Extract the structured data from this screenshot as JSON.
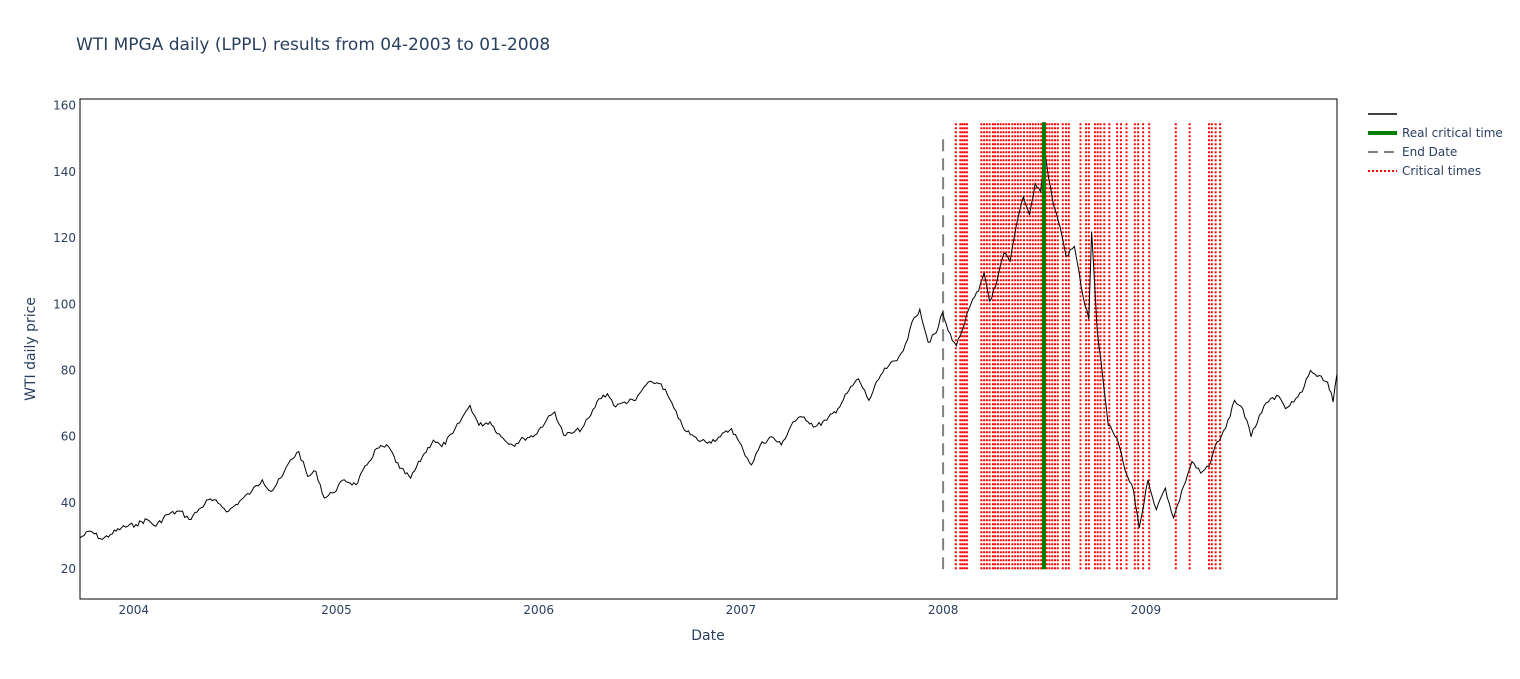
{
  "chart_data": {
    "type": "line",
    "title": "WTI MPGA daily (LPPL) results from 04-2003 to 01-2008",
    "xlabel": "Date",
    "ylabel": "WTI daily price",
    "xlim": [
      "2003-09-26",
      "2009-12-12"
    ],
    "ylim": [
      11,
      162
    ],
    "x_ticks": [
      "2004",
      "2005",
      "2006",
      "2007",
      "2008",
      "2009"
    ],
    "y_ticks": [
      20,
      40,
      60,
      80,
      100,
      120,
      140,
      160
    ],
    "grid": false,
    "legend": "top-right",
    "series": [
      {
        "name": "",
        "color": "#000000",
        "points": [
          [
            "2003-09-26",
            29.5
          ],
          [
            "2003-10-15",
            31.5
          ],
          [
            "2003-11-05",
            29.0
          ],
          [
            "2003-11-20",
            30.5
          ],
          [
            "2003-12-10",
            32.5
          ],
          [
            "2004-01-05",
            33.5
          ],
          [
            "2004-01-25",
            35.0
          ],
          [
            "2004-02-10",
            33.0
          ],
          [
            "2004-03-01",
            36.5
          ],
          [
            "2004-03-25",
            37.5
          ],
          [
            "2004-04-10",
            35.0
          ],
          [
            "2004-05-01",
            38.5
          ],
          [
            "2004-05-15",
            41.0
          ],
          [
            "2004-06-01",
            40.0
          ],
          [
            "2004-06-20",
            37.5
          ],
          [
            "2004-07-10",
            40.5
          ],
          [
            "2004-08-01",
            43.5
          ],
          [
            "2004-08-20",
            47.0
          ],
          [
            "2004-09-05",
            43.5
          ],
          [
            "2004-09-25",
            48.0
          ],
          [
            "2004-10-10",
            53.0
          ],
          [
            "2004-10-25",
            55.5
          ],
          [
            "2004-11-10",
            48.0
          ],
          [
            "2004-11-25",
            49.5
          ],
          [
            "2004-12-10",
            41.5
          ],
          [
            "2004-12-25",
            43.0
          ],
          [
            "2005-01-15",
            47.0
          ],
          [
            "2005-02-05",
            45.5
          ],
          [
            "2005-02-25",
            51.5
          ],
          [
            "2005-03-15",
            56.5
          ],
          [
            "2005-04-05",
            57.0
          ],
          [
            "2005-04-25",
            50.5
          ],
          [
            "2005-05-15",
            47.5
          ],
          [
            "2005-06-05",
            54.0
          ],
          [
            "2005-06-25",
            59.0
          ],
          [
            "2005-07-10",
            57.0
          ],
          [
            "2005-07-30",
            61.0
          ],
          [
            "2005-08-15",
            65.5
          ],
          [
            "2005-08-30",
            69.5
          ],
          [
            "2005-09-15",
            63.5
          ],
          [
            "2005-10-05",
            64.5
          ],
          [
            "2005-10-25",
            60.0
          ],
          [
            "2005-11-15",
            57.5
          ],
          [
            "2005-12-05",
            59.5
          ],
          [
            "2005-12-25",
            60.5
          ],
          [
            "2006-01-15",
            65.0
          ],
          [
            "2006-01-30",
            67.5
          ],
          [
            "2006-02-15",
            60.5
          ],
          [
            "2006-03-01",
            61.0
          ],
          [
            "2006-03-20",
            62.5
          ],
          [
            "2006-04-05",
            66.5
          ],
          [
            "2006-04-20",
            71.5
          ],
          [
            "2006-05-05",
            73.0
          ],
          [
            "2006-05-20",
            69.0
          ],
          [
            "2006-06-05",
            70.5
          ],
          [
            "2006-06-25",
            71.0
          ],
          [
            "2006-07-10",
            75.0
          ],
          [
            "2006-07-25",
            76.5
          ],
          [
            "2006-08-10",
            76.0
          ],
          [
            "2006-08-25",
            71.5
          ],
          [
            "2006-09-10",
            65.5
          ],
          [
            "2006-09-25",
            61.5
          ],
          [
            "2006-10-15",
            59.0
          ],
          [
            "2006-11-05",
            58.5
          ],
          [
            "2006-11-25",
            60.0
          ],
          [
            "2006-12-15",
            62.5
          ],
          [
            "2007-01-05",
            56.0
          ],
          [
            "2007-01-20",
            51.5
          ],
          [
            "2007-02-05",
            57.5
          ],
          [
            "2007-02-25",
            60.0
          ],
          [
            "2007-03-15",
            57.5
          ],
          [
            "2007-04-05",
            64.5
          ],
          [
            "2007-04-25",
            66.0
          ],
          [
            "2007-05-15",
            63.0
          ],
          [
            "2007-06-05",
            65.0
          ],
          [
            "2007-06-25",
            68.5
          ],
          [
            "2007-07-15",
            74.0
          ],
          [
            "2007-08-01",
            77.5
          ],
          [
            "2007-08-20",
            71.0
          ],
          [
            "2007-09-10",
            78.5
          ],
          [
            "2007-09-25",
            81.5
          ],
          [
            "2007-10-10",
            83.0
          ],
          [
            "2007-10-25",
            88.0
          ],
          [
            "2007-11-10",
            96.0
          ],
          [
            "2007-11-20",
            98.5
          ],
          [
            "2007-12-05",
            88.5
          ],
          [
            "2007-12-20",
            91.5
          ],
          [
            "2007-12-31",
            97.5
          ],
          [
            "2008-01-10",
            92.0
          ],
          [
            "2008-01-25",
            87.5
          ],
          [
            "2008-02-05",
            92.5
          ],
          [
            "2008-02-20",
            100.0
          ],
          [
            "2008-03-05",
            104.0
          ],
          [
            "2008-03-15",
            109.5
          ],
          [
            "2008-03-25",
            101.0
          ],
          [
            "2008-04-05",
            105.5
          ],
          [
            "2008-04-20",
            115.5
          ],
          [
            "2008-05-01",
            113.0
          ],
          [
            "2008-05-15",
            126.0
          ],
          [
            "2008-05-25",
            132.5
          ],
          [
            "2008-06-05",
            127.0
          ],
          [
            "2008-06-15",
            136.5
          ],
          [
            "2008-06-25",
            134.0
          ],
          [
            "2008-07-03",
            145.5
          ],
          [
            "2008-07-10",
            137.5
          ],
          [
            "2008-07-20",
            129.0
          ],
          [
            "2008-07-30",
            123.5
          ],
          [
            "2008-08-10",
            114.5
          ],
          [
            "2008-08-25",
            117.5
          ],
          [
            "2008-09-10",
            102.0
          ],
          [
            "2008-09-20",
            95.5
          ],
          [
            "2008-09-25",
            122.0
          ],
          [
            "2008-10-05",
            92.5
          ],
          [
            "2008-10-15",
            78.0
          ],
          [
            "2008-10-25",
            63.5
          ],
          [
            "2008-11-10",
            59.5
          ],
          [
            "2008-11-25",
            49.5
          ],
          [
            "2008-12-10",
            43.5
          ],
          [
            "2008-12-20",
            32.5
          ],
          [
            "2009-01-05",
            47.0
          ],
          [
            "2009-01-20",
            38.0
          ],
          [
            "2009-02-05",
            44.5
          ],
          [
            "2009-02-20",
            35.5
          ],
          [
            "2009-03-10",
            45.0
          ],
          [
            "2009-03-25",
            52.5
          ],
          [
            "2009-04-10",
            49.0
          ],
          [
            "2009-04-25",
            51.0
          ],
          [
            "2009-05-10",
            58.5
          ],
          [
            "2009-05-25",
            62.5
          ],
          [
            "2009-06-10",
            71.0
          ],
          [
            "2009-06-25",
            68.5
          ],
          [
            "2009-07-10",
            60.0
          ],
          [
            "2009-07-25",
            66.5
          ],
          [
            "2009-08-10",
            70.5
          ],
          [
            "2009-08-25",
            72.5
          ],
          [
            "2009-09-10",
            68.5
          ],
          [
            "2009-09-25",
            70.5
          ],
          [
            "2009-10-10",
            73.5
          ],
          [
            "2009-10-25",
            80.0
          ],
          [
            "2009-11-10",
            78.5
          ],
          [
            "2009-11-25",
            76.5
          ],
          [
            "2009-12-05",
            70.5
          ],
          [
            "2009-12-12",
            79.0
          ]
        ]
      }
    ],
    "end_date": {
      "name": "End Date",
      "color": "#808080",
      "x": "2008-01-01",
      "y_range": [
        20,
        152
      ]
    },
    "real_critical_time": {
      "name": "Real critical time",
      "color": "#008000",
      "x": "2008-07-01",
      "y_range": [
        20,
        155
      ]
    },
    "critical_times": {
      "name": "Critical times",
      "color": "#ff0000",
      "y_range": [
        20,
        155
      ],
      "dates": [
        "2008-01-24",
        "2008-02-01",
        "2008-02-05",
        "2008-02-09",
        "2008-02-13",
        "2008-03-10",
        "2008-03-15",
        "2008-03-20",
        "2008-03-25",
        "2008-03-31",
        "2008-04-04",
        "2008-04-09",
        "2008-04-14",
        "2008-04-19",
        "2008-04-24",
        "2008-04-29",
        "2008-05-05",
        "2008-05-10",
        "2008-05-15",
        "2008-05-20",
        "2008-05-26",
        "2008-06-01",
        "2008-06-06",
        "2008-06-11",
        "2008-06-16",
        "2008-06-21",
        "2008-06-26",
        "2008-07-06",
        "2008-07-11",
        "2008-07-16",
        "2008-07-21",
        "2008-07-26",
        "2008-08-04",
        "2008-08-10",
        "2008-08-15",
        "2008-09-05",
        "2008-09-15",
        "2008-09-20",
        "2008-10-01",
        "2008-10-06",
        "2008-10-11",
        "2008-10-18",
        "2008-10-27",
        "2008-11-10",
        "2008-11-17",
        "2008-11-27",
        "2008-12-12",
        "2008-12-18",
        "2008-12-27",
        "2009-01-07",
        "2009-02-24",
        "2009-03-21",
        "2009-04-25",
        "2009-04-30",
        "2009-05-07",
        "2009-05-15"
      ]
    },
    "legend_entries": [
      {
        "label": "",
        "color": "#000000",
        "style": "solid"
      },
      {
        "label": "Real critical time",
        "color": "#008000",
        "style": "thick"
      },
      {
        "label": "End Date",
        "color": "#808080",
        "style": "dash"
      },
      {
        "label": "Critical times",
        "color": "#ff0000",
        "style": "dot"
      }
    ]
  }
}
